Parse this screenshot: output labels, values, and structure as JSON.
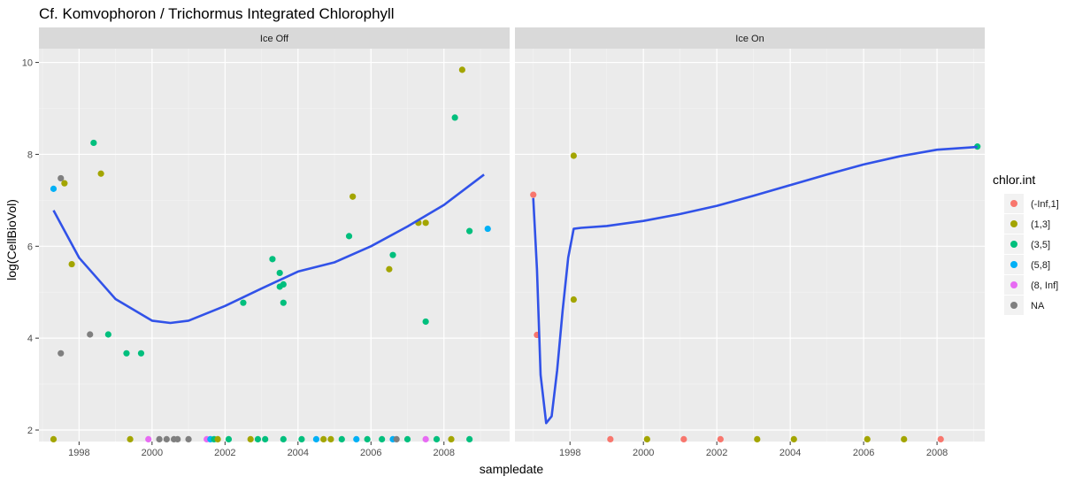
{
  "chart_data": {
    "type": "scatter",
    "title": "Cf. Komvophoron / Trichormus Integrated Chlorophyll",
    "xlabel": "sampledate",
    "ylabel": "log(CellBioVol)",
    "panels": [
      {
        "label": "Ice Off",
        "xlim": [
          1996.9,
          2009.8
        ],
        "x_ticks": [
          1998,
          2000,
          2002,
          2004,
          2006,
          2008
        ],
        "points": [
          {
            "x": 1997.3,
            "y": 7.25,
            "g": "(5,8]"
          },
          {
            "x": 1997.5,
            "y": 7.48,
            "g": "NA"
          },
          {
            "x": 1997.6,
            "y": 7.37,
            "g": "(1,3]"
          },
          {
            "x": 1997.5,
            "y": 3.67,
            "g": "NA"
          },
          {
            "x": 1997.8,
            "y": 5.61,
            "g": "(1,3]"
          },
          {
            "x": 1998.3,
            "y": 4.08,
            "g": "NA"
          },
          {
            "x": 1998.4,
            "y": 8.25,
            "g": "(3,5]"
          },
          {
            "x": 1998.6,
            "y": 7.58,
            "g": "(1,3]"
          },
          {
            "x": 1998.8,
            "y": 4.08,
            "g": "(3,5]"
          },
          {
            "x": 1999.3,
            "y": 3.67,
            "g": "(3,5]"
          },
          {
            "x": 1999.7,
            "y": 3.67,
            "g": "(3,5]"
          },
          {
            "x": 2002.5,
            "y": 4.77,
            "g": "(3,5]"
          },
          {
            "x": 2003.3,
            "y": 5.72,
            "g": "(3,5]"
          },
          {
            "x": 2003.5,
            "y": 5.42,
            "g": "(3,5]"
          },
          {
            "x": 2003.5,
            "y": 5.12,
            "g": "(3,5]"
          },
          {
            "x": 2003.6,
            "y": 5.17,
            "g": "(3,5]"
          },
          {
            "x": 2003.6,
            "y": 4.77,
            "g": "(3,5]"
          },
          {
            "x": 2005.4,
            "y": 6.22,
            "g": "(3,5]"
          },
          {
            "x": 2005.5,
            "y": 7.08,
            "g": "(1,3]"
          },
          {
            "x": 2006.5,
            "y": 5.5,
            "g": "(1,3]"
          },
          {
            "x": 2006.6,
            "y": 5.81,
            "g": "(3,5]"
          },
          {
            "x": 2007.3,
            "y": 6.51,
            "g": "(1,3]"
          },
          {
            "x": 2007.5,
            "y": 6.51,
            "g": "(1,3]"
          },
          {
            "x": 2007.5,
            "y": 4.36,
            "g": "(3,5]"
          },
          {
            "x": 2008.3,
            "y": 8.8,
            "g": "(3,5]"
          },
          {
            "x": 2008.5,
            "y": 9.84,
            "g": "(1,3]"
          },
          {
            "x": 2008.7,
            "y": 6.33,
            "g": "(3,5]"
          },
          {
            "x": 2009.2,
            "y": 6.38,
            "g": "(5,8]"
          },
          {
            "x": 1997.3,
            "y": 1.8,
            "g": "(1,3]"
          },
          {
            "x": 1999.4,
            "y": 1.8,
            "g": "(1,3]"
          },
          {
            "x": 1999.9,
            "y": 1.8,
            "g": "(8, Inf]"
          },
          {
            "x": 2000.2,
            "y": 1.8,
            "g": "NA"
          },
          {
            "x": 2000.4,
            "y": 1.8,
            "g": "NA"
          },
          {
            "x": 2000.6,
            "y": 1.8,
            "g": "NA"
          },
          {
            "x": 2000.7,
            "y": 1.8,
            "g": "NA"
          },
          {
            "x": 2001.0,
            "y": 1.8,
            "g": "NA"
          },
          {
            "x": 2001.5,
            "y": 1.8,
            "g": "(8, Inf]"
          },
          {
            "x": 2001.6,
            "y": 1.8,
            "g": "(5,8]"
          },
          {
            "x": 2001.7,
            "y": 1.8,
            "g": "(3,5]"
          },
          {
            "x": 2001.8,
            "y": 1.8,
            "g": "(1,3]"
          },
          {
            "x": 2002.1,
            "y": 1.8,
            "g": "(3,5]"
          },
          {
            "x": 2002.7,
            "y": 1.8,
            "g": "(1,3]"
          },
          {
            "x": 2002.9,
            "y": 1.8,
            "g": "(3,5]"
          },
          {
            "x": 2003.1,
            "y": 1.8,
            "g": "(3,5]"
          },
          {
            "x": 2003.6,
            "y": 1.8,
            "g": "(3,5]"
          },
          {
            "x": 2004.1,
            "y": 1.8,
            "g": "(3,5]"
          },
          {
            "x": 2004.5,
            "y": 1.8,
            "g": "(5,8]"
          },
          {
            "x": 2004.7,
            "y": 1.8,
            "g": "(1,3]"
          },
          {
            "x": 2004.9,
            "y": 1.8,
            "g": "(1,3]"
          },
          {
            "x": 2005.2,
            "y": 1.8,
            "g": "(3,5]"
          },
          {
            "x": 2005.6,
            "y": 1.8,
            "g": "(5,8]"
          },
          {
            "x": 2005.9,
            "y": 1.8,
            "g": "(3,5]"
          },
          {
            "x": 2006.3,
            "y": 1.8,
            "g": "(3,5]"
          },
          {
            "x": 2006.6,
            "y": 1.8,
            "g": "(5,8]"
          },
          {
            "x": 2006.7,
            "y": 1.8,
            "g": "NA"
          },
          {
            "x": 2007.0,
            "y": 1.8,
            "g": "(3,5]"
          },
          {
            "x": 2007.5,
            "y": 1.8,
            "g": "(8, Inf]"
          },
          {
            "x": 2007.8,
            "y": 1.8,
            "g": "(3,5]"
          },
          {
            "x": 2008.2,
            "y": 1.8,
            "g": "(1,3]"
          },
          {
            "x": 2008.7,
            "y": 1.8,
            "g": "(3,5]"
          }
        ],
        "smooth": [
          [
            1997.3,
            6.78
          ],
          [
            1998.0,
            5.75
          ],
          [
            1999.0,
            4.85
          ],
          [
            2000.0,
            4.38
          ],
          [
            2000.5,
            4.33
          ],
          [
            2001.0,
            4.38
          ],
          [
            2002.0,
            4.7
          ],
          [
            2003.0,
            5.08
          ],
          [
            2004.0,
            5.45
          ],
          [
            2005.0,
            5.65
          ],
          [
            2006.0,
            6.0
          ],
          [
            2007.0,
            6.43
          ],
          [
            2008.0,
            6.9
          ],
          [
            2009.1,
            7.56
          ]
        ]
      },
      {
        "label": "Ice On",
        "xlim": [
          1996.5,
          2009.3
        ],
        "x_ticks": [
          1998,
          2000,
          2002,
          2004,
          2006,
          2008
        ],
        "points": [
          {
            "x": 1997.0,
            "y": 7.12,
            "g": "(-Inf,1]"
          },
          {
            "x": 1997.1,
            "y": 4.07,
            "g": "(-Inf,1]"
          },
          {
            "x": 1998.1,
            "y": 7.97,
            "g": "(1,3]"
          },
          {
            "x": 1998.1,
            "y": 4.84,
            "g": "(1,3]"
          },
          {
            "x": 2009.1,
            "y": 8.17,
            "g": "(3,5]"
          },
          {
            "x": 1999.1,
            "y": 1.8,
            "g": "(-Inf,1]"
          },
          {
            "x": 2000.1,
            "y": 1.8,
            "g": "(1,3]"
          },
          {
            "x": 2001.1,
            "y": 1.8,
            "g": "(-Inf,1]"
          },
          {
            "x": 2002.1,
            "y": 1.8,
            "g": "(-Inf,1]"
          },
          {
            "x": 2003.1,
            "y": 1.8,
            "g": "(1,3]"
          },
          {
            "x": 2004.1,
            "y": 1.8,
            "g": "(1,3]"
          },
          {
            "x": 2006.1,
            "y": 1.8,
            "g": "(1,3]"
          },
          {
            "x": 2007.1,
            "y": 1.8,
            "g": "(1,3]"
          },
          {
            "x": 2008.1,
            "y": 1.8,
            "g": "(-Inf,1]"
          }
        ],
        "smooth": [
          [
            1997.0,
            7.05
          ],
          [
            1997.1,
            5.5
          ],
          [
            1997.2,
            3.2
          ],
          [
            1997.35,
            2.15
          ],
          [
            1997.5,
            2.3
          ],
          [
            1997.65,
            3.3
          ],
          [
            1997.8,
            4.6
          ],
          [
            1997.95,
            5.75
          ],
          [
            1998.1,
            6.38
          ],
          [
            1998.3,
            6.4
          ],
          [
            1999.0,
            6.44
          ],
          [
            2000.0,
            6.55
          ],
          [
            2001.0,
            6.7
          ],
          [
            2002.0,
            6.88
          ],
          [
            2003.0,
            7.1
          ],
          [
            2004.0,
            7.33
          ],
          [
            2005.0,
            7.56
          ],
          [
            2006.0,
            7.78
          ],
          [
            2007.0,
            7.96
          ],
          [
            2008.0,
            8.1
          ],
          [
            2009.1,
            8.16
          ]
        ]
      }
    ],
    "ylim": [
      1.75,
      10.3
    ],
    "y_ticks": [
      2,
      4,
      6,
      8,
      10
    ],
    "legend": {
      "title": "chlor.int",
      "position": "right",
      "items": [
        {
          "label": "(-Inf,1]",
          "color": "#F8766D"
        },
        {
          "label": "(1,3]",
          "color": "#A3A500"
        },
        {
          "label": "(3,5]",
          "color": "#00BF7D"
        },
        {
          "label": "(5,8]",
          "color": "#00B0F6"
        },
        {
          "label": "(8, Inf]",
          "color": "#E76BF3"
        },
        {
          "label": "NA",
          "color": "#7F7F7F"
        }
      ]
    },
    "smooth_color": "#3152E8",
    "grid": true
  }
}
